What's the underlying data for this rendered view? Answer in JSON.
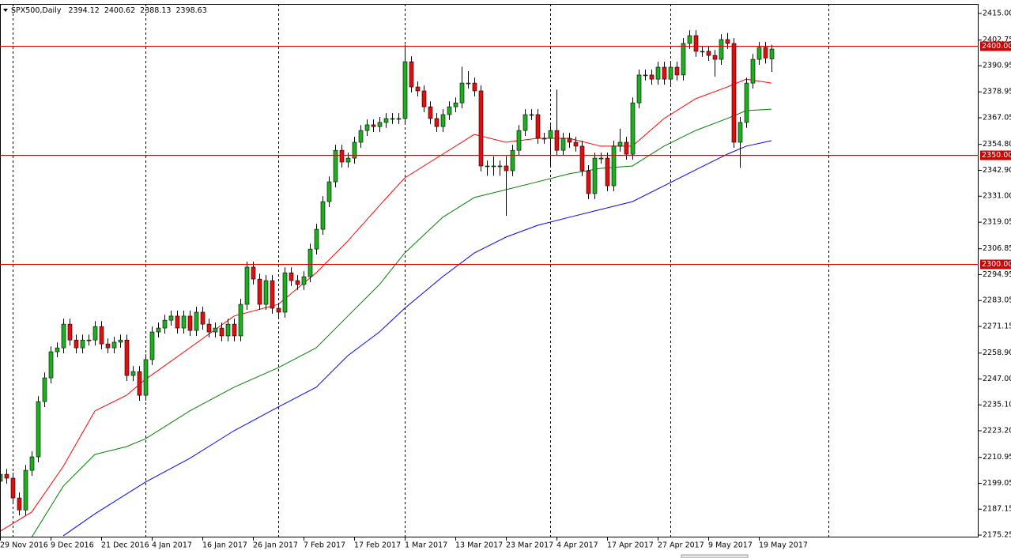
{
  "chart_data": {
    "type": "candlestick",
    "title": "SPX500,Daily",
    "last_ohlc": [
      2394.12,
      2400.62,
      2388.13,
      2398.63
    ],
    "categories": [
      "29 Nov 2016",
      null,
      null,
      null,
      null,
      null,
      null,
      null,
      "9 Dec 2016",
      null,
      null,
      null,
      null,
      null,
      null,
      null,
      "21 Dec 2016",
      null,
      null,
      null,
      null,
      null,
      null,
      null,
      "4 Jan 2017",
      null,
      null,
      null,
      null,
      null,
      null,
      null,
      "16 Jan 2017",
      null,
      null,
      null,
      null,
      null,
      null,
      null,
      "26 Jan 2017",
      null,
      null,
      null,
      null,
      null,
      null,
      null,
      "7 Feb 2017",
      null,
      null,
      null,
      null,
      null,
      null,
      null,
      "17 Feb 2017",
      null,
      null,
      null,
      null,
      null,
      null,
      null,
      "1 Mar 2017",
      null,
      null,
      null,
      null,
      null,
      null,
      null,
      "13 Mar 2017",
      null,
      null,
      null,
      null,
      null,
      null,
      null,
      "23 Mar 2017",
      null,
      null,
      null,
      null,
      null,
      null,
      null,
      "4 Apr 2017",
      null,
      null,
      null,
      null,
      null,
      null,
      null,
      "17 Apr 2017",
      null,
      null,
      null,
      null,
      null,
      null,
      null,
      "27 Apr 2017",
      null,
      null,
      null,
      null,
      null,
      null,
      null,
      "9 May 2017",
      null,
      null,
      null,
      null,
      null,
      null,
      null,
      "19 May 2017",
      null,
      null
    ],
    "open": [
      2200.0,
      2203.2,
      2201.4,
      2192.3,
      2186.8,
      2205.0,
      2211.2,
      2236.6,
      2247.5,
      2259.5,
      2261.3,
      2272.2,
      2264.9,
      2261.3,
      2264.9,
      2264.9,
      2271.1,
      2263.1,
      2261.3,
      2263.9,
      2264.9,
      2248.6,
      2250.4,
      2239.5,
      2255.9,
      2268.6,
      2270.4,
      2274.0,
      2275.9,
      2270.4,
      2275.9,
      2269.3,
      2277.7,
      2272.2,
      2268.6,
      2270.4,
      2266.8,
      2272.2,
      2266.8,
      2281.3,
      2298.4,
      2292.9,
      2281.3,
      2292.2,
      2279.5,
      2277.7,
      2295.8,
      2292.2,
      2290.4,
      2294.0,
      2306.7,
      2315.8,
      2328.5,
      2337.6,
      2352.1,
      2346.7,
      2348.5,
      2355.8,
      2361.2,
      2363.8,
      2363.0,
      2364.9,
      2366.7,
      2366.7,
      2366.7,
      2392.8,
      2381.2,
      2379.4,
      2372.1,
      2366.7,
      2363.0,
      2368.5,
      2372.1,
      2373.9,
      2383.0,
      2383.0,
      2379.4,
      2344.9,
      2344.9,
      2344.9,
      2344.9,
      2342.7,
      2352.1,
      2361.2,
      2368.5,
      2368.5,
      2357.6,
      2357.6,
      2361.2,
      2352.1,
      2357.6,
      2355.8,
      2354.0,
      2342.7,
      2332.2,
      2348.5,
      2348.5,
      2335.8,
      2354.0,
      2355.8,
      2350.3,
      2373.9,
      2386.7,
      2386.7,
      2384.8,
      2390.3,
      2384.8,
      2390.3,
      2386.7,
      2401.2,
      2404.8,
      2397.6,
      2397.6,
      2395.7,
      2393.9,
      2403.0,
      2401.2,
      2355.8,
      2364.9,
      2383.0,
      2393.9,
      2399.4,
      2394.12
    ],
    "high": [
      2205.7,
      2205.7,
      2203.9,
      2194.8,
      2207.5,
      2213.7,
      2239.1,
      2250.0,
      2262.0,
      2263.8,
      2274.7,
      2274.7,
      2267.4,
      2267.4,
      2267.4,
      2273.6,
      2273.6,
      2265.6,
      2266.4,
      2267.4,
      2267.4,
      2252.9,
      2252.9,
      2258.4,
      2271.1,
      2272.9,
      2276.5,
      2278.4,
      2278.4,
      2278.4,
      2278.4,
      2280.2,
      2280.2,
      2274.7,
      2272.9,
      2272.9,
      2274.7,
      2274.7,
      2283.8,
      2300.9,
      2300.9,
      2295.4,
      2294.7,
      2294.7,
      2282.0,
      2298.3,
      2298.3,
      2294.7,
      2296.5,
      2309.2,
      2318.3,
      2331.0,
      2340.1,
      2354.6,
      2354.6,
      2351.0,
      2358.3,
      2363.7,
      2366.3,
      2366.3,
      2367.4,
      2369.2,
      2369.2,
      2369.2,
      2400.6,
      2395.3,
      2383.7,
      2381.9,
      2374.6,
      2369.2,
      2371.0,
      2374.6,
      2376.4,
      2390.5,
      2388.5,
      2385.5,
      2381.9,
      2347.4,
      2349.4,
      2347.4,
      2349.4,
      2354.6,
      2363.7,
      2371.0,
      2371.0,
      2371.0,
      2360.1,
      2363.7,
      2380.0,
      2360.1,
      2360.1,
      2358.3,
      2356.5,
      2345.2,
      2351.0,
      2351.0,
      2351.0,
      2356.5,
      2362.0,
      2358.3,
      2376.4,
      2389.2,
      2389.2,
      2389.2,
      2392.8,
      2392.8,
      2392.8,
      2392.8,
      2403.7,
      2407.3,
      2407.3,
      2400.1,
      2400.1,
      2398.2,
      2405.5,
      2406.0,
      2403.7,
      2367.4,
      2385.5,
      2396.4,
      2401.9,
      2401.9,
      2400.62
    ],
    "low": [
      2197.5,
      2198.9,
      2189.8,
      2184.3,
      2184.3,
      2202.5,
      2208.7,
      2234.1,
      2245.0,
      2257.0,
      2258.8,
      2262.4,
      2258.8,
      2258.8,
      2262.4,
      2262.4,
      2260.6,
      2258.8,
      2258.8,
      2261.4,
      2246.1,
      2246.1,
      2237.0,
      2237.0,
      2253.4,
      2266.1,
      2267.9,
      2271.5,
      2267.9,
      2267.9,
      2266.8,
      2266.8,
      2269.7,
      2266.1,
      2266.1,
      2264.3,
      2264.3,
      2264.3,
      2264.3,
      2278.8,
      2290.4,
      2278.8,
      2278.8,
      2277.0,
      2275.2,
      2275.2,
      2289.7,
      2287.9,
      2287.9,
      2291.5,
      2304.2,
      2313.3,
      2326.0,
      2335.1,
      2344.2,
      2344.2,
      2346.0,
      2353.3,
      2358.7,
      2360.5,
      2360.5,
      2362.4,
      2364.2,
      2364.2,
      2364.2,
      2378.7,
      2376.9,
      2369.6,
      2364.2,
      2360.5,
      2360.5,
      2366.0,
      2369.6,
      2371.4,
      2380.5,
      2376.9,
      2342.4,
      2340.4,
      2340.4,
      2340.4,
      2322.0,
      2340.2,
      2349.6,
      2358.7,
      2366.0,
      2355.1,
      2355.1,
      2345.0,
      2349.6,
      2349.6,
      2353.3,
      2351.5,
      2340.2,
      2329.7,
      2329.7,
      2346.0,
      2333.3,
      2333.3,
      2351.5,
      2347.8,
      2347.8,
      2371.4,
      2384.2,
      2382.3,
      2382.3,
      2382.3,
      2382.3,
      2384.2,
      2384.2,
      2398.7,
      2395.1,
      2395.1,
      2393.2,
      2386.0,
      2391.4,
      2398.7,
      2353.3,
      2344.0,
      2362.4,
      2380.5,
      2391.4,
      2392.0,
      2388.13
    ],
    "close": [
      2203.2,
      2201.4,
      2192.3,
      2186.8,
      2205.0,
      2211.2,
      2236.6,
      2247.5,
      2259.5,
      2261.3,
      2272.2,
      2264.9,
      2261.3,
      2264.9,
      2264.9,
      2271.1,
      2263.1,
      2261.3,
      2263.9,
      2264.9,
      2248.6,
      2250.4,
      2239.5,
      2255.9,
      2268.6,
      2270.4,
      2274.0,
      2275.9,
      2270.4,
      2275.9,
      2269.3,
      2277.7,
      2272.2,
      2268.6,
      2270.4,
      2266.8,
      2272.2,
      2266.8,
      2281.3,
      2298.4,
      2292.9,
      2281.3,
      2292.2,
      2279.5,
      2277.7,
      2295.8,
      2292.2,
      2290.4,
      2294.0,
      2306.7,
      2315.8,
      2328.5,
      2337.6,
      2352.1,
      2346.7,
      2348.5,
      2355.8,
      2361.2,
      2363.8,
      2363.0,
      2364.9,
      2366.7,
      2366.7,
      2366.7,
      2392.8,
      2381.2,
      2379.4,
      2372.1,
      2366.7,
      2363.0,
      2368.5,
      2372.1,
      2373.9,
      2383.0,
      2383.0,
      2379.4,
      2344.9,
      2344.9,
      2344.9,
      2344.9,
      2342.7,
      2352.1,
      2361.2,
      2368.5,
      2368.5,
      2357.6,
      2357.6,
      2361.2,
      2352.1,
      2357.6,
      2355.8,
      2354.0,
      2342.7,
      2332.2,
      2348.5,
      2348.5,
      2335.8,
      2354.0,
      2355.8,
      2350.3,
      2373.9,
      2386.7,
      2386.7,
      2384.8,
      2390.3,
      2384.8,
      2390.3,
      2386.7,
      2401.2,
      2404.8,
      2397.6,
      2397.6,
      2395.7,
      2393.9,
      2403.0,
      2401.2,
      2355.8,
      2364.9,
      2383.0,
      2393.9,
      2399.4,
      2394.5,
      2398.63
    ],
    "up_color": "#1fae1f",
    "down_color": "#e01010",
    "ma_lines": [
      {
        "color": "#ff0000",
        "x": [
          0,
          5,
          10,
          15,
          20,
          23,
          30,
          37,
          44,
          50,
          55,
          60,
          64,
          70,
          75,
          80,
          85,
          90,
          95,
          100,
          105,
          110,
          115,
          118,
          122
        ],
        "values": [
          2177.0,
          2185.8,
          2206.8,
          2232.3,
          2239.5,
          2246.8,
          2261.3,
          2275.9,
          2281.3,
          2295.8,
          2310.4,
          2326.7,
          2339.4,
          2350.3,
          2359.4,
          2355.8,
          2357.6,
          2357.6,
          2354.0,
          2354.0,
          2366.7,
          2375.8,
          2381.2,
          2384.8,
          2383.0
        ]
      },
      {
        "color": "#008000",
        "x": [
          5,
          10,
          15,
          20,
          23,
          30,
          37,
          44,
          50,
          55,
          60,
          64,
          70,
          75,
          80,
          85,
          90,
          95,
          100,
          105,
          110,
          115,
          118,
          122
        ],
        "values": [
          2174.2,
          2197.7,
          2212.3,
          2215.9,
          2219.5,
          2232.3,
          2243.2,
          2252.2,
          2261.3,
          2275.9,
          2290.4,
          2304.9,
          2321.3,
          2330.4,
          2334.0,
          2337.6,
          2341.3,
          2343.8,
          2344.9,
          2354.0,
          2361.2,
          2366.7,
          2370.3,
          2371.0
        ]
      },
      {
        "color": "#0000ff",
        "x": [
          10,
          15,
          23,
          30,
          37,
          44,
          50,
          55,
          60,
          64,
          70,
          75,
          80,
          85,
          90,
          95,
          100,
          105,
          110,
          115,
          118,
          122
        ],
        "values": [
          2174.9,
          2185.0,
          2199.6,
          2210.5,
          2223.2,
          2234.1,
          2243.2,
          2257.7,
          2268.6,
          2279.5,
          2294.0,
          2304.9,
          2312.2,
          2317.6,
          2321.3,
          2324.9,
          2328.5,
          2335.8,
          2343.1,
          2350.3,
          2354.0,
          2356.5
        ]
      }
    ],
    "levels": [
      {
        "value": 2400,
        "label": "2400.00"
      },
      {
        "value": 2350,
        "label": "2350.00"
      },
      {
        "value": 2300,
        "label": "2300.00"
      }
    ],
    "level_color": "#d40000",
    "ylim": [
      2174.16,
      2419.36
    ],
    "yticks": [
      {
        "value": 2415.0,
        "label": "2415.00"
      },
      {
        "value": 2402.75,
        "label": "2402.75"
      },
      {
        "value": 2390.95,
        "label": "2390.95"
      },
      {
        "value": 2378.95,
        "label": "2378.95"
      },
      {
        "value": 2367.05,
        "label": "2367.05"
      },
      {
        "value": 2354.8,
        "label": "2354.80"
      },
      {
        "value": 2342.9,
        "label": "2342.90"
      },
      {
        "value": 2331.0,
        "label": "2331.00"
      },
      {
        "value": 2319.05,
        "label": "2319.05"
      },
      {
        "value": 2306.85,
        "label": "2306.85"
      },
      {
        "value": 2294.95,
        "label": "2294.95"
      },
      {
        "value": 2283.05,
        "label": "2283.05"
      },
      {
        "value": 2271.15,
        "label": "2271.15"
      },
      {
        "value": 2258.9,
        "label": "2258.90"
      },
      {
        "value": 2247.0,
        "label": "2247.00"
      },
      {
        "value": 2235.1,
        "label": "2235.10"
      },
      {
        "value": 2223.2,
        "label": "2223.20"
      },
      {
        "value": 2210.95,
        "label": "2210.95"
      },
      {
        "value": 2199.05,
        "label": "2199.05"
      },
      {
        "value": 2187.15,
        "label": "2187.15"
      },
      {
        "value": 2175.25,
        "label": "2175.25"
      }
    ]
  }
}
